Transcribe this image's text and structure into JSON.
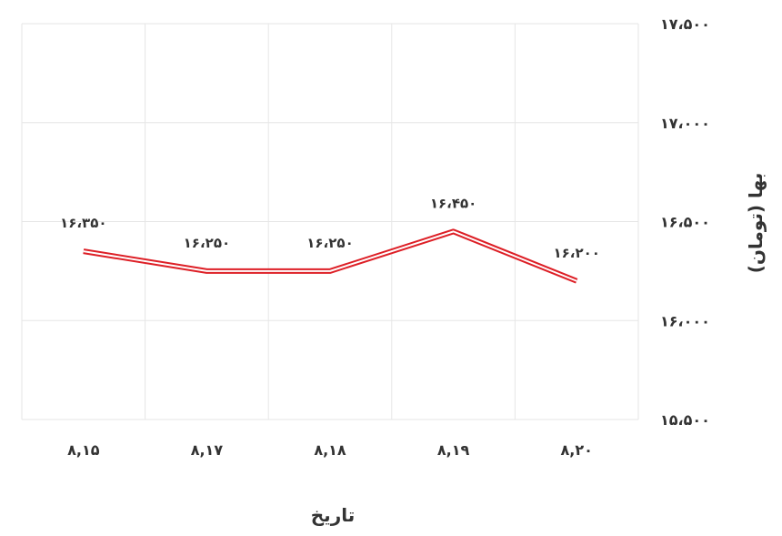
{
  "chart_data": {
    "type": "line",
    "categories": [
      "۸,۱۵",
      "۸,۱۷",
      "۸,۱۸",
      "۸,۱۹",
      "۸,۲۰"
    ],
    "series": [
      {
        "values": [
          16350,
          16250,
          16250,
          16450,
          16200
        ],
        "value_labels": [
          "۱۶،۳۵۰",
          "۱۶،۲۵۰",
          "۱۶،۲۵۰",
          "۱۶،۴۵۰",
          "۱۶،۲۰۰"
        ],
        "color": "#dd1f26"
      }
    ],
    "xlabel": "تاریخ",
    "ylabel": "بها (تومان)",
    "ylim": [
      15500,
      17500
    ],
    "yticks": [
      15500,
      16000,
      16500,
      17000,
      17500
    ],
    "ytick_labels": [
      "۱۵،۵۰۰",
      "۱۶،۰۰۰",
      "۱۶،۵۰۰",
      "۱۷،۰۰۰",
      "۱۷،۵۰۰"
    ],
    "y_axis_position": "right",
    "grid": true,
    "line_color": "#dd1f26",
    "grid_color": "#e6e6e6"
  }
}
